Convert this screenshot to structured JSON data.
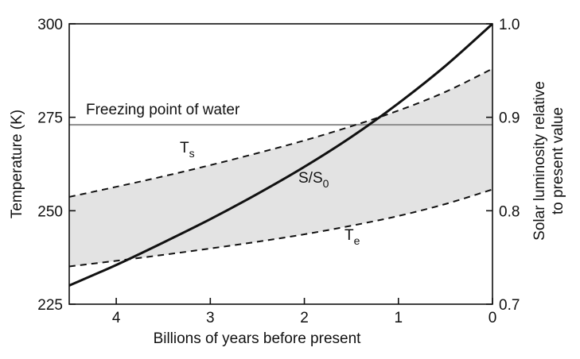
{
  "chart_data": {
    "type": "line",
    "xlabel": "Billions of years before present",
    "ylabel_left": "Temperature (K)",
    "ylabel_right_lines": [
      "Solar luminosity relative",
      "to present value"
    ],
    "x_ticks": [
      4,
      3,
      2,
      1,
      0
    ],
    "y_left_ticks": [
      225,
      250,
      275,
      300
    ],
    "y_right_ticks": [
      "0.7",
      "0.8",
      "0.9",
      "1.0"
    ],
    "xlim": [
      4.5,
      0
    ],
    "ylim_left": [
      225,
      300
    ],
    "ylim_right": [
      0.7,
      1.0
    ],
    "x_reversed": true,
    "grid": false,
    "reference_line": {
      "label": "Freezing point of water",
      "value": 273
    },
    "series": [
      {
        "label_main": "T",
        "label_sub": "s",
        "style": "dashed",
        "axis": "left",
        "x": [
          4.5,
          4.0,
          3.5,
          3.0,
          2.5,
          2.0,
          1.5,
          1.0,
          0.5,
          0.0
        ],
        "y": [
          253.7,
          256.4,
          259.2,
          262.2,
          265.4,
          268.8,
          272.6,
          276.8,
          281.8,
          288.0
        ]
      },
      {
        "label_main": "T",
        "label_sub": "e",
        "style": "dashed",
        "axis": "left",
        "x": [
          4.5,
          4.0,
          3.5,
          3.0,
          2.5,
          2.0,
          1.5,
          1.0,
          0.5,
          0.0
        ],
        "y": [
          235.1,
          236.6,
          238.2,
          239.9,
          241.7,
          243.7,
          246.0,
          248.6,
          251.8,
          255.7
        ]
      },
      {
        "label_main": "S/S",
        "label_sub": "0",
        "style": "solid",
        "axis": "right",
        "x": [
          4.5,
          4.0,
          3.5,
          3.0,
          2.5,
          2.0,
          1.5,
          1.0,
          0.5,
          0.0
        ],
        "y": [
          0.72,
          0.742,
          0.766,
          0.791,
          0.818,
          0.847,
          0.879,
          0.915,
          0.955,
          1.0
        ]
      }
    ],
    "shaded_band": {
      "between": [
        "s",
        "e"
      ],
      "color": "#e3e3e3"
    },
    "colors": {
      "curve": "#111111",
      "reference_line": "#8c8c8c",
      "band": "#e3e3e3"
    }
  }
}
